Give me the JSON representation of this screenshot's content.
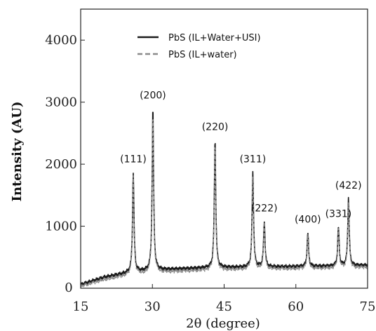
{
  "chart_data": {
    "type": "line",
    "xlabel": "2θ (degree)",
    "ylabel": "Intensity (AU)",
    "xlim": [
      15,
      75
    ],
    "ylim": [
      0,
      4500
    ],
    "x_ticks": [
      15,
      30,
      45,
      60,
      75
    ],
    "y_ticks": [
      1000,
      2000,
      3000,
      4000
    ],
    "y_zero_label": "0",
    "grid": false,
    "legend_position": "top-center",
    "series": [
      {
        "name": "PbS (IL+Water+USI)",
        "color": "#1a1a1a",
        "style": "solid",
        "baseline": [
          [
            15,
            60
          ],
          [
            20,
            180
          ],
          [
            25,
            250
          ],
          [
            30,
            290
          ],
          [
            35,
            310
          ],
          [
            40,
            325
          ],
          [
            45,
            335
          ],
          [
            50,
            340
          ],
          [
            55,
            345
          ],
          [
            60,
            350
          ],
          [
            65,
            355
          ],
          [
            70,
            360
          ],
          [
            75,
            370
          ]
        ],
        "peaks": [
          {
            "x": 26.0,
            "y": 1870,
            "label": "(111)"
          },
          {
            "x": 30.1,
            "y": 2900,
            "label": "(200)"
          },
          {
            "x": 43.1,
            "y": 2390,
            "label": "(220)"
          },
          {
            "x": 51.0,
            "y": 1870,
            "label": "(311)"
          },
          {
            "x": 53.4,
            "y": 1080,
            "label": "(222)"
          },
          {
            "x": 62.5,
            "y": 900,
            "label": "(400)"
          },
          {
            "x": 68.9,
            "y": 990,
            "label": "(331)"
          },
          {
            "x": 71.0,
            "y": 1450,
            "label": "(422)"
          }
        ]
      },
      {
        "name": "PbS (IL+water)",
        "color": "#8a8a8a",
        "style": "dashed",
        "baseline": [
          [
            15,
            30
          ],
          [
            20,
            140
          ],
          [
            25,
            210
          ],
          [
            30,
            250
          ],
          [
            35,
            270
          ],
          [
            40,
            285
          ],
          [
            45,
            295
          ],
          [
            50,
            305
          ],
          [
            55,
            310
          ],
          [
            60,
            315
          ],
          [
            65,
            320
          ],
          [
            70,
            325
          ],
          [
            75,
            335
          ]
        ],
        "peaks": [
          {
            "x": 26.0,
            "y": 1800
          },
          {
            "x": 30.1,
            "y": 2800
          },
          {
            "x": 43.1,
            "y": 2320
          },
          {
            "x": 51.0,
            "y": 1800
          },
          {
            "x": 53.4,
            "y": 1040
          },
          {
            "x": 62.5,
            "y": 860
          },
          {
            "x": 68.9,
            "y": 950
          },
          {
            "x": 71.0,
            "y": 1400
          }
        ]
      }
    ]
  }
}
